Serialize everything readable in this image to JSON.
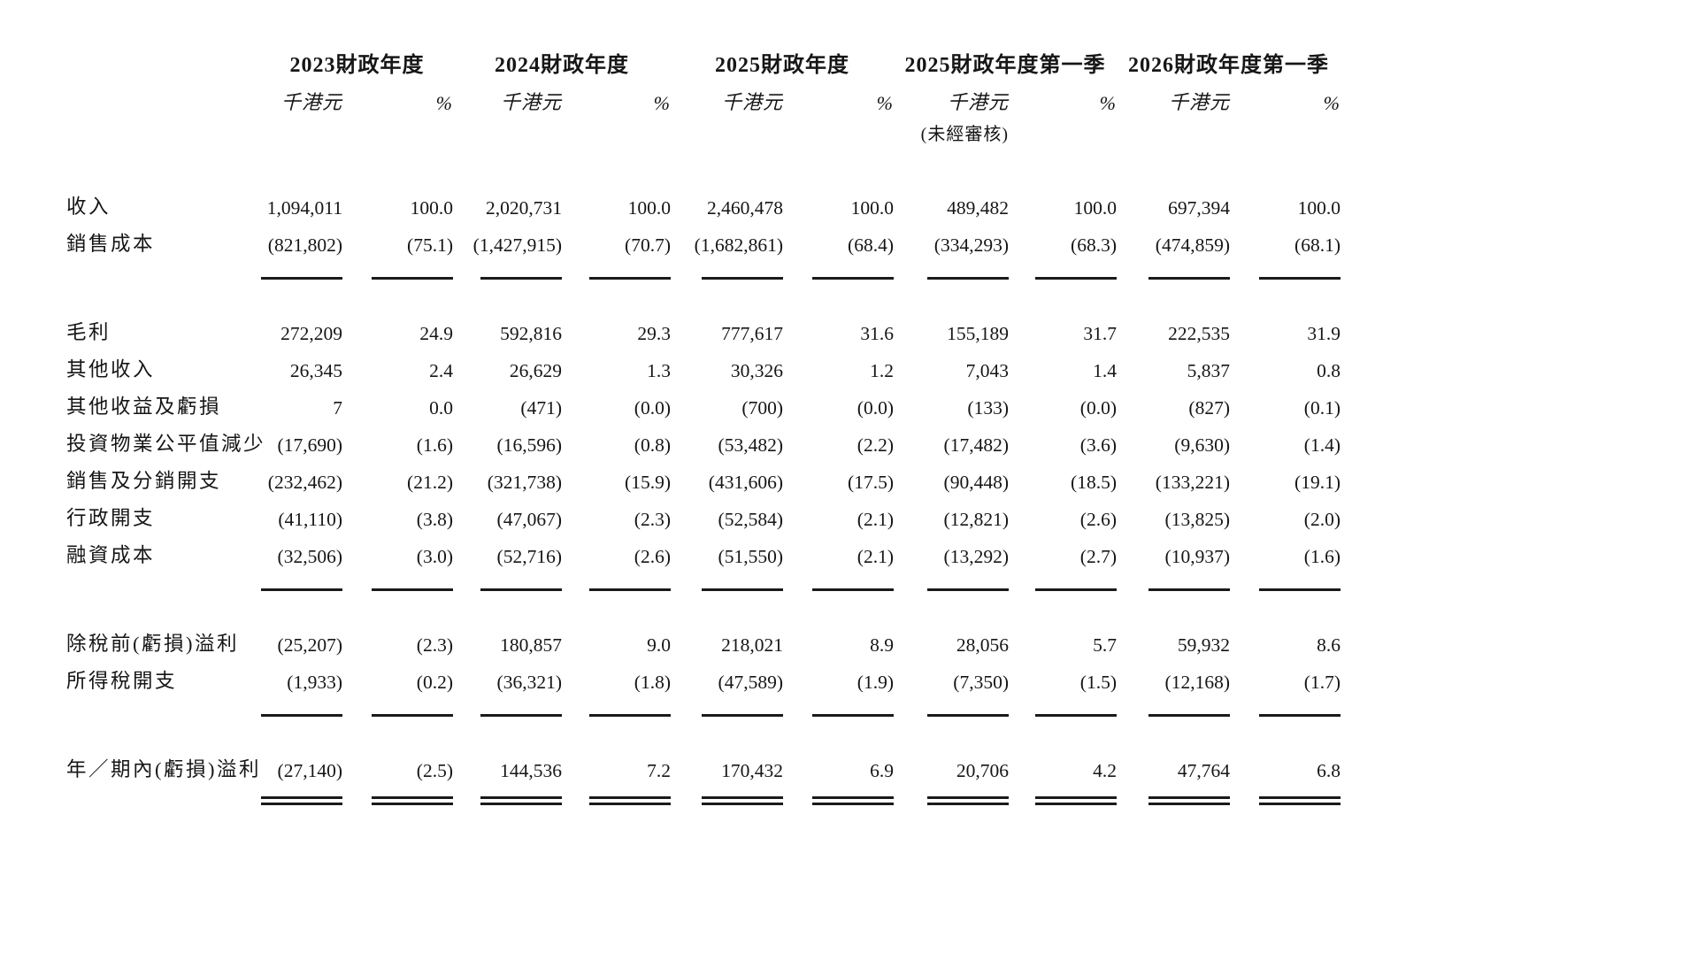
{
  "page": {
    "background_color": "#ffffff",
    "text_color": "#161616"
  },
  "table": {
    "column_groups": [
      {
        "title": "2023財政年度",
        "unit_label": "千港元",
        "percent_label": "%",
        "note": ""
      },
      {
        "title": "2024財政年度",
        "unit_label": "千港元",
        "percent_label": "%",
        "note": ""
      },
      {
        "title": "2025財政年度",
        "unit_label": "千港元",
        "percent_label": "%",
        "note": ""
      },
      {
        "title": "2025財政年度第一季",
        "unit_label": "千港元",
        "percent_label": "%",
        "note": "(未經審核)"
      },
      {
        "title": "2026財政年度第一季",
        "unit_label": "千港元",
        "percent_label": "%",
        "note": ""
      }
    ],
    "rows": [
      {
        "label": "收入",
        "cells": [
          "1,094,011",
          "100.0",
          "2,020,731",
          "100.0",
          "2,460,478",
          "100.0",
          "489,482",
          "100.0",
          "697,394",
          "100.0"
        ]
      },
      {
        "label": "銷售成本",
        "cells": [
          "(821,802)",
          "(75.1)",
          "(1,427,915)",
          "(70.7)",
          "(1,682,861)",
          "(68.4)",
          "(334,293)",
          "(68.3)",
          "(474,859)",
          "(68.1)"
        ],
        "rule_after": "single",
        "gap_after": true
      },
      {
        "label": "毛利",
        "cells": [
          "272,209",
          "24.9",
          "592,816",
          "29.3",
          "777,617",
          "31.6",
          "155,189",
          "31.7",
          "222,535",
          "31.9"
        ]
      },
      {
        "label": "其他收入",
        "cells": [
          "26,345",
          "2.4",
          "26,629",
          "1.3",
          "30,326",
          "1.2",
          "7,043",
          "1.4",
          "5,837",
          "0.8"
        ]
      },
      {
        "label": "其他收益及虧損",
        "cells": [
          "7",
          "0.0",
          "(471)",
          "(0.0)",
          "(700)",
          "(0.0)",
          "(133)",
          "(0.0)",
          "(827)",
          "(0.1)"
        ]
      },
      {
        "label": "投資物業公平值減少",
        "cells": [
          "(17,690)",
          "(1.6)",
          "(16,596)",
          "(0.8)",
          "(53,482)",
          "(2.2)",
          "(17,482)",
          "(3.6)",
          "(9,630)",
          "(1.4)"
        ]
      },
      {
        "label": "銷售及分銷開支",
        "cells": [
          "(232,462)",
          "(21.2)",
          "(321,738)",
          "(15.9)",
          "(431,606)",
          "(17.5)",
          "(90,448)",
          "(18.5)",
          "(133,221)",
          "(19.1)"
        ]
      },
      {
        "label": "行政開支",
        "cells": [
          "(41,110)",
          "(3.8)",
          "(47,067)",
          "(2.3)",
          "(52,584)",
          "(2.1)",
          "(12,821)",
          "(2.6)",
          "(13,825)",
          "(2.0)"
        ]
      },
      {
        "label": "融資成本",
        "cells": [
          "(32,506)",
          "(3.0)",
          "(52,716)",
          "(2.6)",
          "(51,550)",
          "(2.1)",
          "(13,292)",
          "(2.7)",
          "(10,937)",
          "(1.6)"
        ],
        "rule_after": "single",
        "gap_after": true
      },
      {
        "label": "除稅前(虧損)溢利",
        "cells": [
          "(25,207)",
          "(2.3)",
          "180,857",
          "9.0",
          "218,021",
          "8.9",
          "28,056",
          "5.7",
          "59,932",
          "8.6"
        ]
      },
      {
        "label": "所得稅開支",
        "cells": [
          "(1,933)",
          "(0.2)",
          "(36,321)",
          "(1.8)",
          "(47,589)",
          "(1.9)",
          "(7,350)",
          "(1.5)",
          "(12,168)",
          "(1.7)"
        ],
        "rule_after": "single",
        "gap_after": true
      },
      {
        "label": "年／期內(虧損)溢利",
        "cells": [
          "(27,140)",
          "(2.5)",
          "144,536",
          "7.2",
          "170,432",
          "6.9",
          "20,706",
          "4.2",
          "47,764",
          "6.8"
        ],
        "rule_after": "double"
      }
    ]
  }
}
